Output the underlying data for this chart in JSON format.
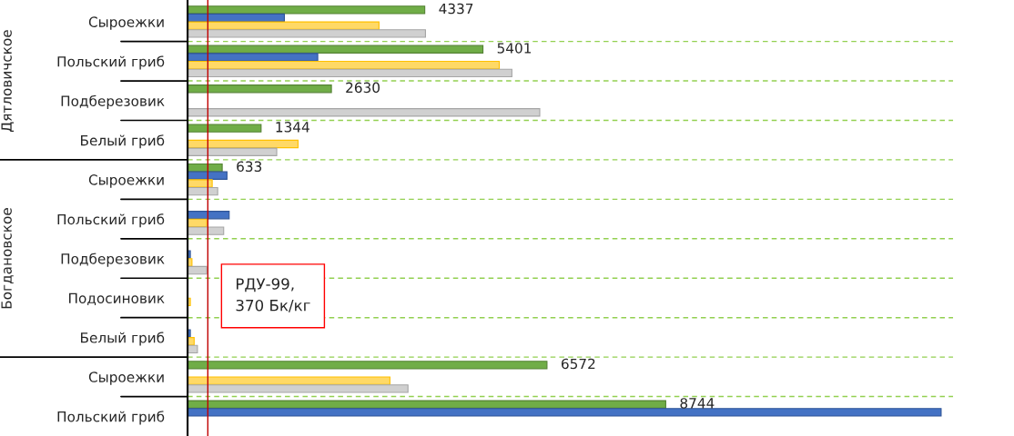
{
  "chart_data": {
    "type": "bar",
    "orientation": "horizontal",
    "categories": [
      "Сыроежки",
      "Польский гриб",
      "Подберезовик",
      "Белый гриб",
      "Сыроежки",
      "Польский гриб",
      "Подберезовик",
      "Подосиновик",
      "Белый гриб",
      "Сыроежки",
      "Польский гриб"
    ],
    "series": [
      {
        "color": "#70ad47",
        "values": [
          4337,
          5401,
          2630,
          1344,
          633,
          null,
          null,
          null,
          null,
          6572,
          8744
        ],
        "value_labels": [
          "4337",
          "5401",
          "2630",
          "1344",
          "633",
          null,
          null,
          null,
          null,
          "6572",
          "8744"
        ]
      },
      {
        "color": "#4472c4",
        "values": [
          1770,
          2380,
          null,
          null,
          720,
          760,
          50,
          null,
          50,
          null,
          13780
        ]
      },
      {
        "color": "#ffd966",
        "values": [
          3500,
          5700,
          null,
          2020,
          450,
          350,
          80,
          50,
          120,
          3700,
          null
        ]
      },
      {
        "color": "#d0d0d0",
        "values": [
          4350,
          5930,
          6440,
          1630,
          550,
          660,
          350,
          null,
          180,
          4030,
          null
        ]
      }
    ],
    "xlim": [
      0,
      14000
    ],
    "tick_labels": "y",
    "grid": "y",
    "ref_lines": [
      {
        "axis": "x",
        "value": 370,
        "label": "РДУ-99,\n370 Бк/кг",
        "color": "#c00000"
      }
    ],
    "annotations": [
      "Дятловичское",
      "Богдановское"
    ]
  }
}
